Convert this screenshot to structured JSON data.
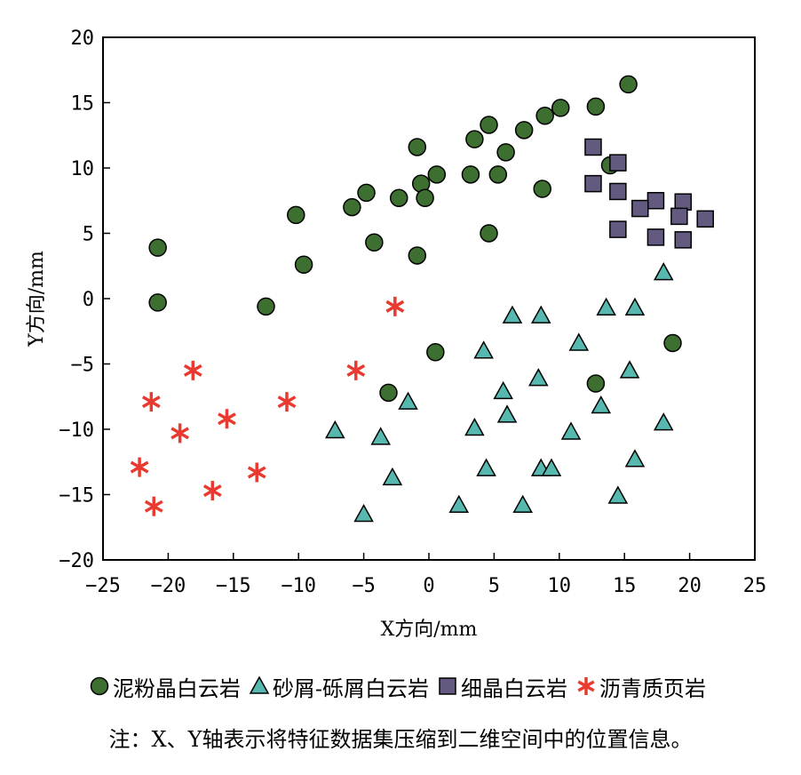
{
  "chart_data": {
    "type": "scatter",
    "xlabel": "X方向/mm",
    "ylabel": "Y方向/mm",
    "xlim": [
      -25,
      25
    ],
    "ylim": [
      -20,
      20
    ],
    "xticks": [
      "−25",
      "−20",
      "−15",
      "−10",
      "−5",
      "0",
      "5",
      "10",
      "15",
      "20",
      "25"
    ],
    "yticks": [
      "20",
      "15",
      "10",
      "5",
      "0",
      "−5",
      "−10",
      "−15",
      "−20"
    ],
    "grid": false,
    "legend_position": "bottom",
    "series": [
      {
        "name": "泥粉晶白云岩",
        "marker": "circle",
        "color": "#3d7030",
        "points": [
          [
            15.3,
            16.4
          ],
          [
            10.1,
            14.6
          ],
          [
            12.8,
            14.7
          ],
          [
            8.9,
            14.0
          ],
          [
            4.6,
            13.3
          ],
          [
            7.3,
            12.9
          ],
          [
            3.5,
            12.2
          ],
          [
            5.9,
            11.2
          ],
          [
            -0.9,
            11.6
          ],
          [
            13.9,
            10.2
          ],
          [
            0.6,
            9.5
          ],
          [
            3.2,
            9.5
          ],
          [
            5.3,
            9.5
          ],
          [
            -0.6,
            8.8
          ],
          [
            8.7,
            8.4
          ],
          [
            -4.8,
            8.1
          ],
          [
            -2.3,
            7.7
          ],
          [
            -0.3,
            7.7
          ],
          [
            -5.9,
            7.0
          ],
          [
            -10.2,
            6.4
          ],
          [
            4.6,
            5.0
          ],
          [
            -4.2,
            4.3
          ],
          [
            -20.8,
            3.9
          ],
          [
            -0.9,
            3.3
          ],
          [
            -9.6,
            2.6
          ],
          [
            -20.8,
            -0.3
          ],
          [
            -12.5,
            -0.6
          ],
          [
            18.7,
            -3.4
          ],
          [
            0.5,
            -4.1
          ],
          [
            -3.1,
            -7.2
          ],
          [
            12.8,
            -6.5
          ]
        ]
      },
      {
        "name": "砂屑-砾屑白云岩",
        "marker": "triangle",
        "color": "#56b8ae",
        "points": [
          [
            18.0,
            2.0
          ],
          [
            13.6,
            -0.7
          ],
          [
            15.8,
            -0.7
          ],
          [
            6.4,
            -1.3
          ],
          [
            8.6,
            -1.3
          ],
          [
            11.5,
            -3.4
          ],
          [
            4.2,
            -4.0
          ],
          [
            15.4,
            -5.5
          ],
          [
            8.4,
            -6.1
          ],
          [
            5.7,
            -7.1
          ],
          [
            -1.6,
            -7.9
          ],
          [
            13.2,
            -8.2
          ],
          [
            6.0,
            -8.9
          ],
          [
            18.0,
            -9.5
          ],
          [
            -7.2,
            -10.1
          ],
          [
            3.5,
            -9.9
          ],
          [
            10.9,
            -10.2
          ],
          [
            -3.7,
            -10.6
          ],
          [
            4.4,
            -13.0
          ],
          [
            8.6,
            -13.0
          ],
          [
            9.4,
            -13.0
          ],
          [
            15.8,
            -12.3
          ],
          [
            -2.8,
            -13.7
          ],
          [
            14.5,
            -15.1
          ],
          [
            2.3,
            -15.8
          ],
          [
            7.2,
            -15.8
          ],
          [
            -5.0,
            -16.5
          ]
        ]
      },
      {
        "name": "细晶白云岩",
        "marker": "square",
        "color": "#645a80",
        "points": [
          [
            12.6,
            11.6
          ],
          [
            14.5,
            10.4
          ],
          [
            12.6,
            8.8
          ],
          [
            14.5,
            8.2
          ],
          [
            17.4,
            7.5
          ],
          [
            19.5,
            7.4
          ],
          [
            16.2,
            6.9
          ],
          [
            19.2,
            6.3
          ],
          [
            21.2,
            6.1
          ],
          [
            14.5,
            5.3
          ],
          [
            17.4,
            4.7
          ],
          [
            19.5,
            4.5
          ]
        ]
      },
      {
        "name": "沥青质页岩",
        "marker": "asterisk",
        "color": "#e83a30",
        "points": [
          [
            -2.6,
            -0.6
          ],
          [
            -18.1,
            -5.5
          ],
          [
            -5.6,
            -5.5
          ],
          [
            -21.3,
            -7.9
          ],
          [
            -10.9,
            -7.9
          ],
          [
            -15.5,
            -9.2
          ],
          [
            -19.1,
            -10.3
          ],
          [
            -22.2,
            -12.9
          ],
          [
            -13.2,
            -13.3
          ],
          [
            -16.6,
            -14.7
          ],
          [
            -21.1,
            -15.9
          ]
        ]
      }
    ]
  },
  "note": "注：X、Y轴表示将特征数据集压缩到二维空间中的位置信息。"
}
